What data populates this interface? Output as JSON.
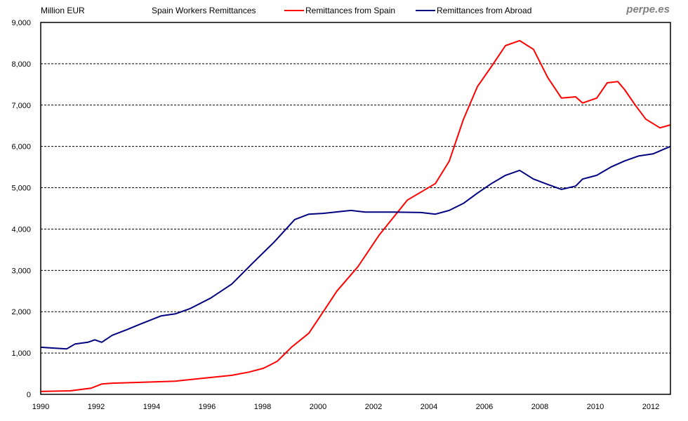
{
  "chart_data": {
    "type": "line",
    "title": "Spain Workers Remittances",
    "ylabel": "Million EUR",
    "xlabel": "",
    "ylim": [
      0,
      9000
    ],
    "xlim": [
      1990,
      2012.7
    ],
    "grid": true,
    "legend_position": "top",
    "y_ticks": [
      "0",
      "1,000",
      "2,000",
      "3,000",
      "4,000",
      "5,000",
      "6,000",
      "7,000",
      "8,000",
      "9,000"
    ],
    "y_tick_values": [
      0,
      1000,
      2000,
      3000,
      4000,
      5000,
      6000,
      7000,
      8000,
      9000
    ],
    "x_ticks": [
      "1990",
      "1992",
      "1994",
      "1996",
      "1998",
      "2000",
      "2002",
      "2004",
      "2006",
      "2008",
      "2010",
      "2012"
    ],
    "x_tick_values": [
      1990,
      1992,
      1994,
      1996,
      1998,
      2000,
      2002,
      2004,
      2006,
      2008,
      2010,
      2012
    ],
    "series": [
      {
        "name": "Remittances from Spain",
        "color": "#ff0000",
        "x": [
          1990.0,
          1991.06,
          1991.82,
          1992.2,
          1992.58,
          1993.59,
          1994.86,
          1995.87,
          1996.89,
          1997.52,
          1998.03,
          1998.53,
          1999.04,
          1999.67,
          2000.18,
          2000.68,
          2001.44,
          2002.2,
          2003.22,
          2004.23,
          2004.73,
          2005.24,
          2005.75,
          2006.25,
          2006.76,
          2007.27,
          2007.77,
          2008.28,
          2008.78,
          2009.29,
          2009.54,
          2010.05,
          2010.43,
          2010.81,
          2011.06,
          2011.44,
          2011.82,
          2012.33,
          2012.71
        ],
        "values": [
          70,
          85,
          150,
          250,
          270,
          290,
          320,
          390,
          460,
          540,
          630,
          800,
          1140,
          1480,
          1990,
          2500,
          3090,
          3850,
          4700,
          5100,
          5640,
          6650,
          7450,
          7930,
          8440,
          8560,
          8350,
          7670,
          7170,
          7200,
          7050,
          7170,
          7540,
          7570,
          7370,
          7000,
          6660,
          6450,
          6520
        ]
      },
      {
        "name": "Remittances from Abroad",
        "color": "#000080",
        "x": [
          1990.0,
          1990.43,
          1990.94,
          1991.24,
          1991.7,
          1991.95,
          1992.2,
          1992.58,
          1993.09,
          1993.59,
          1994.35,
          1994.86,
          1995.37,
          1996.13,
          1996.89,
          1997.65,
          1998.41,
          1999.16,
          1999.67,
          2000.18,
          2001.19,
          2001.7,
          2002.71,
          2003.72,
          2004.23,
          2004.73,
          2005.24,
          2005.75,
          2006.25,
          2006.76,
          2007.27,
          2007.77,
          2008.28,
          2008.78,
          2009.29,
          2009.54,
          2010.05,
          2010.56,
          2011.06,
          2011.57,
          2012.08,
          2012.46,
          2012.71
        ],
        "values": [
          1140,
          1120,
          1100,
          1220,
          1260,
          1320,
          1260,
          1430,
          1560,
          1700,
          1900,
          1950,
          2070,
          2330,
          2670,
          3180,
          3680,
          4230,
          4360,
          4380,
          4450,
          4410,
          4410,
          4400,
          4360,
          4450,
          4620,
          4870,
          5100,
          5300,
          5420,
          5210,
          5080,
          4960,
          5040,
          5210,
          5300,
          5500,
          5650,
          5770,
          5820,
          5930,
          6000
        ]
      }
    ]
  },
  "header": {
    "unit_label": "Million EUR",
    "title": "Spain Workers Remittances",
    "legend": [
      "Remittances from Spain",
      "Remittances from Abroad"
    ],
    "brand": "perpe.es"
  }
}
